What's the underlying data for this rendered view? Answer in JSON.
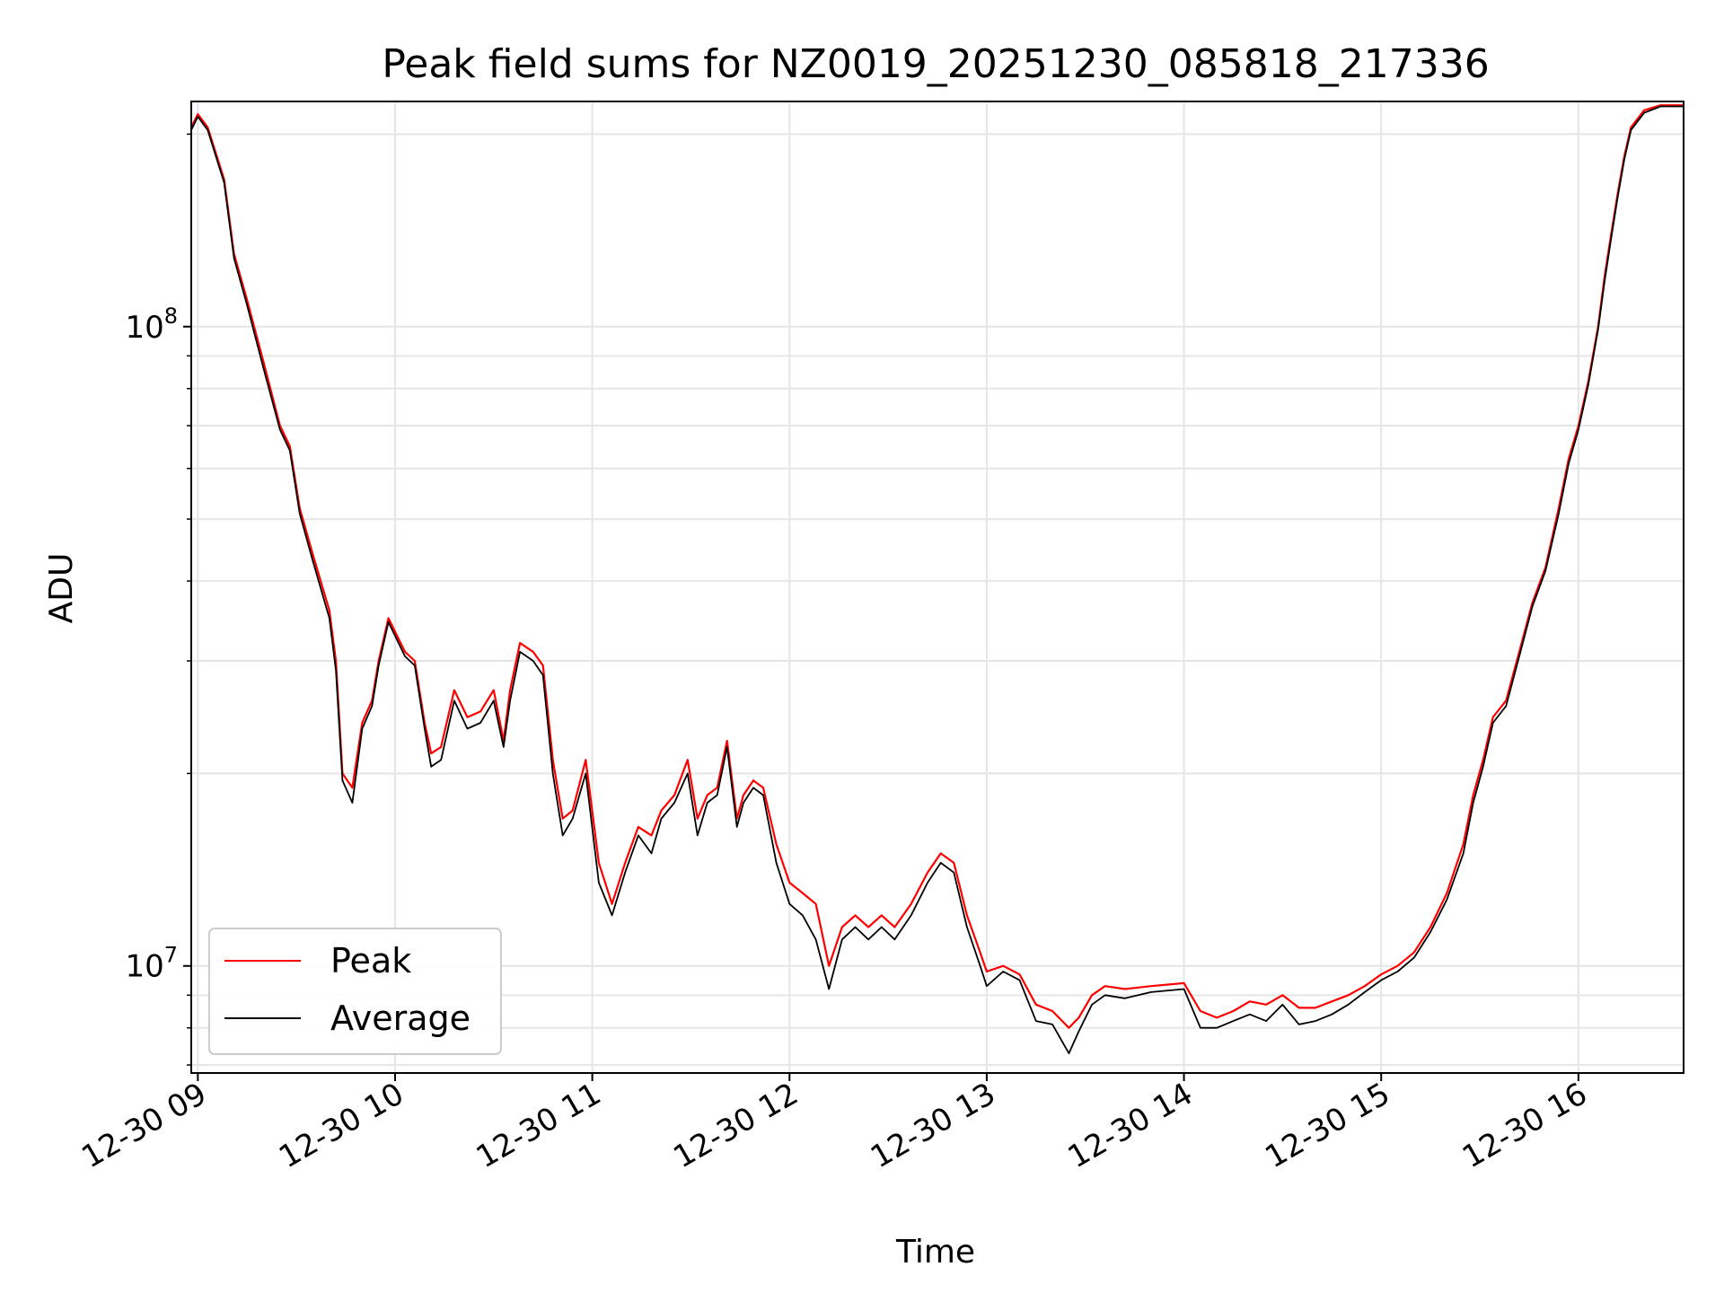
{
  "chart_data": {
    "type": "line",
    "title": "Peak field sums for NZ0019_20251230_085818_217336",
    "xlabel": "Time",
    "ylabel": "ADU",
    "x_axis": "datetime",
    "y_scale": "log",
    "ylim": [
      6800000,
      225000000
    ],
    "xlim": [
      "2025-12-30 08:58",
      "2025-12-30 16:32"
    ],
    "x_tick_labels": [
      "12-30 09",
      "12-30 10",
      "12-30 11",
      "12-30 12",
      "12-30 13",
      "12-30 14",
      "12-30 15",
      "12-30 16"
    ],
    "y_tick_labels": [
      {
        "value": 100000000,
        "base": "10",
        "exp": "8"
      },
      {
        "value": 10000000,
        "base": "10",
        "exp": "7"
      }
    ],
    "grid": true,
    "legend": {
      "position": "lower-left"
    },
    "series": [
      {
        "name": "Peak",
        "color": "#ff0000",
        "x": [
          "2025-12-30 08:58",
          "2025-12-30 09:00",
          "2025-12-30 09:03",
          "2025-12-30 09:08",
          "2025-12-30 09:11",
          "2025-12-30 09:15",
          "2025-12-30 09:20",
          "2025-12-30 09:25",
          "2025-12-30 09:28",
          "2025-12-30 09:31",
          "2025-12-30 09:35",
          "2025-12-30 09:40",
          "2025-12-30 09:42",
          "2025-12-30 09:44",
          "2025-12-30 09:47",
          "2025-12-30 09:50",
          "2025-12-30 09:53",
          "2025-12-30 09:55",
          "2025-12-30 09:58",
          "2025-12-30 10:03",
          "2025-12-30 10:06",
          "2025-12-30 10:09",
          "2025-12-30 10:11",
          "2025-12-30 10:14",
          "2025-12-30 10:18",
          "2025-12-30 10:22",
          "2025-12-30 10:26",
          "2025-12-30 10:30",
          "2025-12-30 10:33",
          "2025-12-30 10:35",
          "2025-12-30 10:38",
          "2025-12-30 10:42",
          "2025-12-30 10:45",
          "2025-12-30 10:48",
          "2025-12-30 10:51",
          "2025-12-30 10:54",
          "2025-12-30 10:58",
          "2025-12-30 11:02",
          "2025-12-30 11:06",
          "2025-12-30 11:10",
          "2025-12-30 11:14",
          "2025-12-30 11:18",
          "2025-12-30 11:21",
          "2025-12-30 11:25",
          "2025-12-30 11:29",
          "2025-12-30 11:32",
          "2025-12-30 11:35",
          "2025-12-30 11:38",
          "2025-12-30 11:41",
          "2025-12-30 11:44",
          "2025-12-30 11:46",
          "2025-12-30 11:49",
          "2025-12-30 11:52",
          "2025-12-30 11:56",
          "2025-12-30 12:00",
          "2025-12-30 12:04",
          "2025-12-30 12:08",
          "2025-12-30 12:12",
          "2025-12-30 12:16",
          "2025-12-30 12:20",
          "2025-12-30 12:24",
          "2025-12-30 12:28",
          "2025-12-30 12:32",
          "2025-12-30 12:37",
          "2025-12-30 12:42",
          "2025-12-30 12:46",
          "2025-12-30 12:50",
          "2025-12-30 12:54",
          "2025-12-30 12:58",
          "2025-12-30 13:00",
          "2025-12-30 13:05",
          "2025-12-30 13:10",
          "2025-12-30 13:15",
          "2025-12-30 13:20",
          "2025-12-30 13:25",
          "2025-12-30 13:28",
          "2025-12-30 13:32",
          "2025-12-30 13:36",
          "2025-12-30 13:42",
          "2025-12-30 13:50",
          "2025-12-30 14:00",
          "2025-12-30 14:05",
          "2025-12-30 14:10",
          "2025-12-30 14:15",
          "2025-12-30 14:20",
          "2025-12-30 14:25",
          "2025-12-30 14:30",
          "2025-12-30 14:35",
          "2025-12-30 14:40",
          "2025-12-30 14:45",
          "2025-12-30 14:50",
          "2025-12-30 14:55",
          "2025-12-30 15:00",
          "2025-12-30 15:05",
          "2025-12-30 15:10",
          "2025-12-30 15:15",
          "2025-12-30 15:20",
          "2025-12-30 15:25",
          "2025-12-30 15:28",
          "2025-12-30 15:31",
          "2025-12-30 15:34",
          "2025-12-30 15:38",
          "2025-12-30 15:42",
          "2025-12-30 15:46",
          "2025-12-30 15:50",
          "2025-12-30 15:54",
          "2025-12-30 15:57",
          "2025-12-30 16:00",
          "2025-12-30 16:03",
          "2025-12-30 16:06",
          "2025-12-30 16:08",
          "2025-12-30 16:10",
          "2025-12-30 16:12",
          "2025-12-30 16:14",
          "2025-12-30 16:16",
          "2025-12-30 16:20",
          "2025-12-30 16:25",
          "2025-12-30 16:32"
        ],
        "values": [
          205000000,
          215000000,
          205000000,
          170000000,
          130000000,
          110000000,
          88000000,
          70000000,
          65000000,
          52000000,
          44000000,
          36000000,
          30000000,
          20000000,
          19000000,
          24000000,
          26000000,
          30000000,
          35000000,
          31000000,
          30000000,
          24000000,
          21500000,
          22000000,
          27000000,
          24500000,
          25000000,
          27000000,
          22500000,
          27000000,
          32000000,
          31000000,
          29500000,
          21000000,
          17000000,
          17500000,
          21000000,
          14500000,
          12500000,
          14500000,
          16500000,
          16000000,
          17500000,
          18500000,
          21000000,
          17000000,
          18500000,
          19000000,
          22500000,
          17000000,
          18500000,
          19500000,
          19000000,
          15500000,
          13500000,
          13000000,
          12500000,
          10000000,
          11500000,
          12000000,
          11500000,
          12000000,
          11500000,
          12500000,
          14000000,
          15000000,
          14500000,
          12000000,
          10500000,
          9800000,
          10000000,
          9700000,
          8700000,
          8500000,
          8000000,
          8300000,
          9000000,
          9300000,
          9200000,
          9300000,
          9400000,
          8500000,
          8300000,
          8500000,
          8800000,
          8700000,
          9000000,
          8600000,
          8600000,
          8800000,
          9000000,
          9300000,
          9700000,
          10000000,
          10500000,
          11500000,
          13000000,
          15500000,
          18500000,
          21000000,
          24500000,
          26000000,
          31000000,
          37000000,
          42000000,
          52000000,
          62000000,
          70000000,
          82000000,
          100000000,
          120000000,
          140000000,
          162000000,
          185000000,
          205000000,
          218000000,
          222000000,
          222000000
        ]
      },
      {
        "name": "Average",
        "color": "#000000",
        "x": [
          "2025-12-30 08:58",
          "2025-12-30 09:00",
          "2025-12-30 09:03",
          "2025-12-30 09:08",
          "2025-12-30 09:11",
          "2025-12-30 09:15",
          "2025-12-30 09:20",
          "2025-12-30 09:25",
          "2025-12-30 09:28",
          "2025-12-30 09:31",
          "2025-12-30 09:35",
          "2025-12-30 09:40",
          "2025-12-30 09:42",
          "2025-12-30 09:44",
          "2025-12-30 09:47",
          "2025-12-30 09:50",
          "2025-12-30 09:53",
          "2025-12-30 09:55",
          "2025-12-30 09:58",
          "2025-12-30 10:03",
          "2025-12-30 10:06",
          "2025-12-30 10:09",
          "2025-12-30 10:11",
          "2025-12-30 10:14",
          "2025-12-30 10:18",
          "2025-12-30 10:22",
          "2025-12-30 10:26",
          "2025-12-30 10:30",
          "2025-12-30 10:33",
          "2025-12-30 10:35",
          "2025-12-30 10:38",
          "2025-12-30 10:42",
          "2025-12-30 10:45",
          "2025-12-30 10:48",
          "2025-12-30 10:51",
          "2025-12-30 10:54",
          "2025-12-30 10:58",
          "2025-12-30 11:02",
          "2025-12-30 11:06",
          "2025-12-30 11:10",
          "2025-12-30 11:14",
          "2025-12-30 11:18",
          "2025-12-30 11:21",
          "2025-12-30 11:25",
          "2025-12-30 11:29",
          "2025-12-30 11:32",
          "2025-12-30 11:35",
          "2025-12-30 11:38",
          "2025-12-30 11:41",
          "2025-12-30 11:44",
          "2025-12-30 11:46",
          "2025-12-30 11:49",
          "2025-12-30 11:52",
          "2025-12-30 11:56",
          "2025-12-30 12:00",
          "2025-12-30 12:04",
          "2025-12-30 12:08",
          "2025-12-30 12:12",
          "2025-12-30 12:16",
          "2025-12-30 12:20",
          "2025-12-30 12:24",
          "2025-12-30 12:28",
          "2025-12-30 12:32",
          "2025-12-30 12:37",
          "2025-12-30 12:42",
          "2025-12-30 12:46",
          "2025-12-30 12:50",
          "2025-12-30 12:54",
          "2025-12-30 12:58",
          "2025-12-30 13:00",
          "2025-12-30 13:05",
          "2025-12-30 13:10",
          "2025-12-30 13:15",
          "2025-12-30 13:20",
          "2025-12-30 13:25",
          "2025-12-30 13:28",
          "2025-12-30 13:32",
          "2025-12-30 13:36",
          "2025-12-30 13:42",
          "2025-12-30 13:50",
          "2025-12-30 14:00",
          "2025-12-30 14:05",
          "2025-12-30 14:10",
          "2025-12-30 14:15",
          "2025-12-30 14:20",
          "2025-12-30 14:25",
          "2025-12-30 14:30",
          "2025-12-30 14:35",
          "2025-12-30 14:40",
          "2025-12-30 14:45",
          "2025-12-30 14:50",
          "2025-12-30 14:55",
          "2025-12-30 15:00",
          "2025-12-30 15:05",
          "2025-12-30 15:10",
          "2025-12-30 15:15",
          "2025-12-30 15:20",
          "2025-12-30 15:25",
          "2025-12-30 15:28",
          "2025-12-30 15:31",
          "2025-12-30 15:34",
          "2025-12-30 15:38",
          "2025-12-30 15:42",
          "2025-12-30 15:46",
          "2025-12-30 15:50",
          "2025-12-30 15:54",
          "2025-12-30 15:57",
          "2025-12-30 16:00",
          "2025-12-30 16:03",
          "2025-12-30 16:06",
          "2025-12-30 16:08",
          "2025-12-30 16:10",
          "2025-12-30 16:12",
          "2025-12-30 16:14",
          "2025-12-30 16:16",
          "2025-12-30 16:20",
          "2025-12-30 16:25",
          "2025-12-30 16:32"
        ],
        "values": [
          203000000,
          213000000,
          203000000,
          168000000,
          128000000,
          108000000,
          86000000,
          69000000,
          64000000,
          51000000,
          43000000,
          35000000,
          29000000,
          19500000,
          18000000,
          23500000,
          25500000,
          29500000,
          34500000,
          30500000,
          29500000,
          23500000,
          20500000,
          21000000,
          26000000,
          23500000,
          24000000,
          26000000,
          22000000,
          26000000,
          31000000,
          30000000,
          28500000,
          20000000,
          16000000,
          17000000,
          20000000,
          13500000,
          12000000,
          14000000,
          16000000,
          15000000,
          17000000,
          18000000,
          20000000,
          16000000,
          18000000,
          18500000,
          22000000,
          16500000,
          18000000,
          19000000,
          18500000,
          14500000,
          12500000,
          12000000,
          11000000,
          9200000,
          11000000,
          11500000,
          11000000,
          11500000,
          11000000,
          12000000,
          13500000,
          14500000,
          14000000,
          11500000,
          10000000,
          9300000,
          9800000,
          9500000,
          8200000,
          8100000,
          7300000,
          7900000,
          8700000,
          9000000,
          8900000,
          9100000,
          9200000,
          8000000,
          8000000,
          8200000,
          8400000,
          8200000,
          8700000,
          8100000,
          8200000,
          8400000,
          8700000,
          9100000,
          9500000,
          9800000,
          10300000,
          11300000,
          12700000,
          15000000,
          18000000,
          20500000,
          24000000,
          25500000,
          30500000,
          36500000,
          41500000,
          51000000,
          61000000,
          69000000,
          81000000,
          99000000,
          118000000,
          138000000,
          160000000,
          183000000,
          203000000,
          216000000,
          221000000,
          221000000
        ]
      }
    ]
  }
}
